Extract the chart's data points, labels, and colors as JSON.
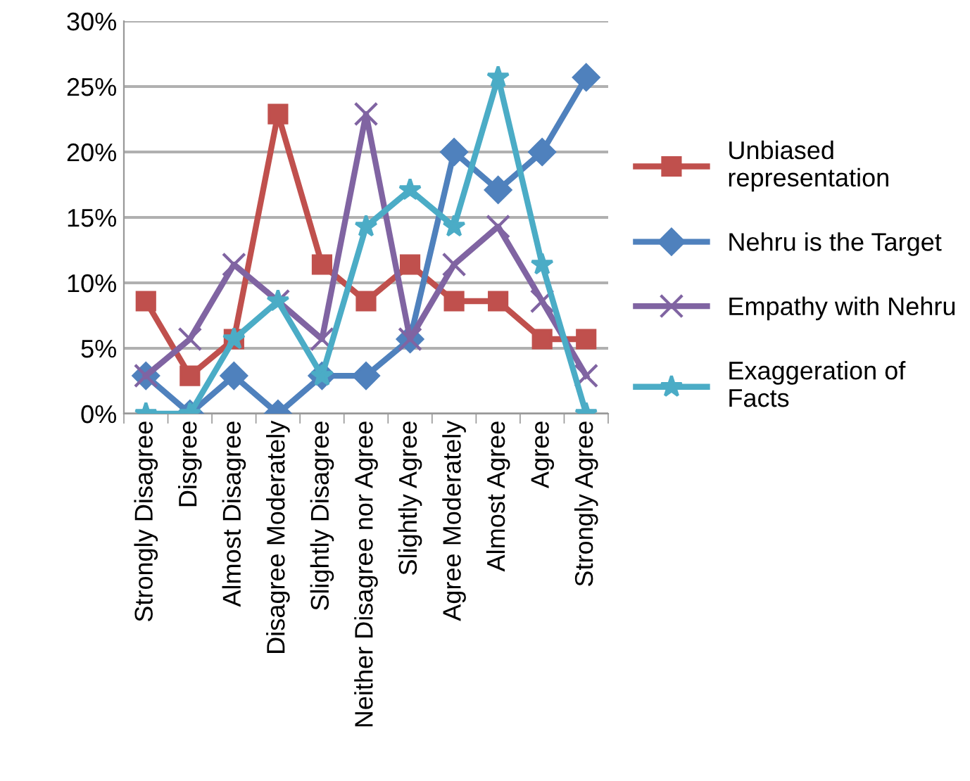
{
  "chart_data": {
    "type": "line",
    "categories": [
      "Strongly Disagree",
      "Disgree",
      "Almost Disagree",
      "Disagree Moderately",
      "Slightly Disagree",
      "Neither Disagree nor Agree",
      "Slightly Agree",
      "Agree Moderately",
      "Almost Agree",
      "Agree",
      "Strongly Agree"
    ],
    "series": [
      {
        "name": "Unbiased representation",
        "color": "#c0504d",
        "marker": "square",
        "values": [
          8.6,
          2.9,
          5.7,
          22.9,
          11.4,
          8.6,
          11.4,
          8.6,
          8.6,
          5.7,
          5.7
        ]
      },
      {
        "name": "Nehru is the Target",
        "color": "#4f81bd",
        "marker": "diamond",
        "values": [
          2.9,
          0,
          2.9,
          0,
          2.9,
          2.9,
          5.7,
          20,
          17.1,
          20,
          25.7
        ]
      },
      {
        "name": "Empathy with Nehru",
        "color": "#8064a2",
        "marker": "cross",
        "values": [
          2.9,
          5.7,
          11.4,
          8.6,
          5.7,
          22.9,
          5.7,
          11.4,
          14.3,
          8.6,
          2.9
        ]
      },
      {
        "name": "Exaggeration of Facts",
        "color": "#4bacc6",
        "marker": "star",
        "values": [
          0,
          0,
          5.7,
          8.6,
          2.9,
          14.3,
          17.1,
          14.3,
          25.7,
          11.4,
          0
        ]
      }
    ],
    "ylim": [
      0,
      30
    ],
    "yticks": [
      {
        "value": 0,
        "label": "0%"
      },
      {
        "value": 5,
        "label": "5%"
      },
      {
        "value": 10,
        "label": "10%"
      },
      {
        "value": 15,
        "label": "15%"
      },
      {
        "value": 20,
        "label": "20%"
      },
      {
        "value": 25,
        "label": "25%"
      },
      {
        "value": 30,
        "label": "30%"
      }
    ],
    "grid": "y",
    "legend": "right",
    "line_style": "solid"
  }
}
